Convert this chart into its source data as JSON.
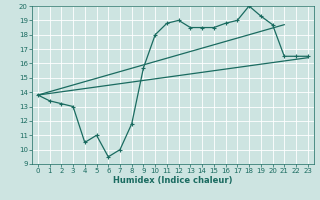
{
  "xlabel": "Humidex (Indice chaleur)",
  "ylabel": "",
  "bg_color": "#cde4e1",
  "grid_color": "#b8d4d0",
  "line_color": "#1a6b60",
  "xlim": [
    -0.5,
    23.5
  ],
  "ylim": [
    9,
    20
  ],
  "xticks": [
    0,
    1,
    2,
    3,
    4,
    5,
    6,
    7,
    8,
    9,
    10,
    11,
    12,
    13,
    14,
    15,
    16,
    17,
    18,
    19,
    20,
    21,
    22,
    23
  ],
  "yticks": [
    9,
    10,
    11,
    12,
    13,
    14,
    15,
    16,
    17,
    18,
    19,
    20
  ],
  "line1_x": [
    0,
    1,
    2,
    3,
    4,
    5,
    6,
    7,
    8,
    9,
    10,
    11,
    12,
    13,
    14,
    15,
    16,
    17,
    18,
    19,
    20,
    21,
    22,
    23
  ],
  "line1_y": [
    13.8,
    13.4,
    13.2,
    13.0,
    10.5,
    11.0,
    9.5,
    10.0,
    11.8,
    15.7,
    18.0,
    18.8,
    19.0,
    18.5,
    18.5,
    18.5,
    18.8,
    19.0,
    20.0,
    19.3,
    18.7,
    16.5,
    16.5,
    16.5
  ],
  "line2_x": [
    0,
    21
  ],
  "line2_y": [
    13.8,
    18.7
  ],
  "line3_x": [
    0,
    23
  ],
  "line3_y": [
    13.8,
    16.4
  ]
}
